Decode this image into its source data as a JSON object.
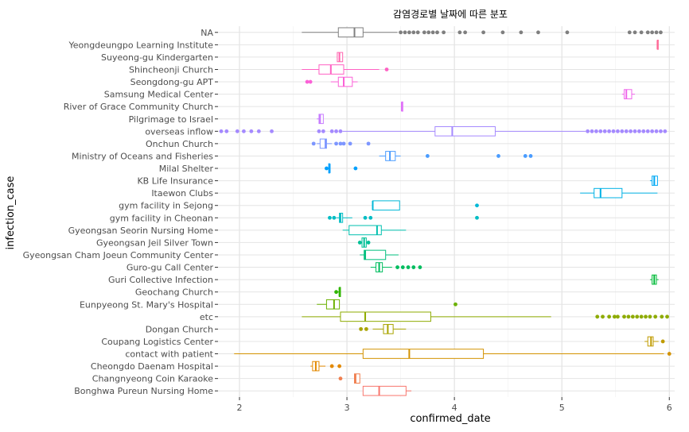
{
  "chart_data": {
    "type": "boxplot",
    "title": "감염경로별 날짜에 따른 분포",
    "xlabel": "confirmed_date",
    "ylabel": "infection_case",
    "xlim": [
      1.8,
      6.05
    ],
    "x_ticks": [
      "2",
      "3",
      "4",
      "5",
      "6"
    ],
    "x_tick_values": [
      2,
      3,
      4,
      5,
      6
    ],
    "grid": true,
    "legend": "none",
    "categories": [
      "Bonghwa Pureun Nursing Home",
      "Changnyeong Coin Karaoke",
      "Cheongdo Daenam Hospital",
      "contact with patient",
      "Coupang Logistics Center",
      "Dongan Church",
      "etc",
      "Eunpyeong St. Mary's Hospital",
      "Geochang Church",
      "Guri Collective Infection",
      "Guro-gu Call Center",
      "Gyeongsan Cham Joeun Community Center",
      "Gyeongsan Jeil Silver Town",
      "Gyeongsan Seorin Nursing Home",
      "gym facility in Cheonan",
      "gym facility in Sejong",
      "Itaewon Clubs",
      "KB Life Insurance",
      "Milal Shelter",
      "Ministry of Oceans and Fisheries",
      "Onchun Church",
      "overseas inflow",
      "Pilgrimage to Israel",
      "River of Grace Community Church",
      "Samsung Medical Center",
      "Seongdong-gu APT",
      "Shincheonji Church",
      "Suyeong-gu Kindergarten",
      "Yeongdeungpo Learning Institute",
      "NA"
    ],
    "series": [
      {
        "category": "Bonghwa Pureun Nursing Home",
        "color": "#F8766D",
        "min": 3.15,
        "q1": 3.15,
        "median": 3.3,
        "q3": 3.55,
        "max": 3.6,
        "outliers": []
      },
      {
        "category": "Changnyeong Coin Karaoke",
        "color": "#F07F4F",
        "min": 3.07,
        "q1": 3.07,
        "median": 3.08,
        "q3": 3.12,
        "max": 3.12,
        "outliers": [
          2.94
        ]
      },
      {
        "category": "Cheongdo Daenam Hospital",
        "color": "#E38900",
        "min": 2.66,
        "q1": 2.68,
        "median": 2.71,
        "q3": 2.74,
        "max": 2.8,
        "outliers": [
          2.86,
          2.93
        ]
      },
      {
        "category": "contact with patient",
        "color": "#D39200",
        "min": 1.95,
        "q1": 3.15,
        "median": 3.58,
        "q3": 4.27,
        "max": 5.95,
        "outliers": [
          6.0
        ]
      },
      {
        "category": "Coupang Logistics Center",
        "color": "#C09B00",
        "min": 5.77,
        "q1": 5.8,
        "median": 5.83,
        "q3": 5.85,
        "max": 5.9,
        "outliers": [
          5.94
        ]
      },
      {
        "category": "Dongan Church",
        "color": "#A9A400",
        "min": 3.24,
        "q1": 3.34,
        "median": 3.38,
        "q3": 3.43,
        "max": 3.55,
        "outliers": [
          3.13,
          3.18
        ]
      },
      {
        "category": "etc",
        "color": "#8EAB00",
        "min": 2.58,
        "q1": 2.94,
        "median": 3.17,
        "q3": 3.78,
        "max": 4.9,
        "outliers": [
          5.33,
          5.38,
          5.44,
          5.49,
          5.52,
          5.58,
          5.62,
          5.66,
          5.7,
          5.74,
          5.78,
          5.82,
          5.87,
          5.93,
          5.98
        ]
      },
      {
        "category": "Eunpyeong St. Mary's Hospital",
        "color": "#6BB100",
        "min": 2.72,
        "q1": 2.81,
        "median": 2.88,
        "q3": 2.93,
        "max": 2.93,
        "outliers": [
          4.01
        ]
      },
      {
        "category": "Geochang Church",
        "color": "#2FB600",
        "min": 2.9,
        "q1": 2.93,
        "median": 2.93,
        "q3": 2.94,
        "max": 2.94,
        "outliers": [
          2.9
        ]
      },
      {
        "category": "Guri Collective Infection",
        "color": "#00BA38",
        "min": 5.82,
        "q1": 5.84,
        "median": 5.86,
        "q3": 5.88,
        "max": 5.9,
        "outliers": []
      },
      {
        "category": "Guro-gu Call Center",
        "color": "#00BD5F",
        "min": 3.22,
        "q1": 3.27,
        "median": 3.3,
        "q3": 3.33,
        "max": 3.42,
        "outliers": [
          3.47,
          3.52,
          3.57,
          3.62,
          3.68
        ]
      },
      {
        "category": "Gyeongsan Cham Joeun Community Center",
        "color": "#00BF7D",
        "min": 3.12,
        "q1": 3.16,
        "median": 3.17,
        "q3": 3.36,
        "max": 3.48,
        "outliers": []
      },
      {
        "category": "Gyeongsan Jeil Silver Town",
        "color": "#00C097",
        "min": 3.12,
        "q1": 3.14,
        "median": 3.16,
        "q3": 3.18,
        "max": 3.2,
        "outliers": [
          3.12,
          3.2
        ]
      },
      {
        "category": "Gyeongsan Seorin Nursing Home",
        "color": "#00C0AF",
        "min": 2.96,
        "q1": 3.02,
        "median": 3.28,
        "q3": 3.32,
        "max": 3.55,
        "outliers": []
      },
      {
        "category": "gym facility in Cheonan",
        "color": "#00BDC4",
        "min": 2.9,
        "q1": 2.93,
        "median": 2.94,
        "q3": 2.96,
        "max": 3.05,
        "outliers": [
          2.84,
          2.88,
          3.17,
          3.22,
          4.21
        ]
      },
      {
        "category": "gym facility in Sejong",
        "color": "#00B8D7",
        "min": 3.24,
        "q1": 3.24,
        "median": 3.24,
        "q3": 3.49,
        "max": 3.49,
        "outliers": [
          4.21
        ]
      },
      {
        "category": "Itaewon Clubs",
        "color": "#00B2E6",
        "min": 5.17,
        "q1": 5.3,
        "median": 5.36,
        "q3": 5.56,
        "max": 5.89,
        "outliers": []
      },
      {
        "category": "KB Life Insurance",
        "color": "#00A9F4",
        "min": 5.82,
        "q1": 5.84,
        "median": 5.86,
        "q3": 5.89,
        "max": 5.89,
        "outliers": []
      },
      {
        "category": "Milal Shelter",
        "color": "#00A0FD",
        "min": 2.81,
        "q1": 2.83,
        "median": 2.84,
        "q3": 2.84,
        "max": 2.84,
        "outliers": [
          2.81,
          3.08
        ]
      },
      {
        "category": "Ministry of Oceans and Fisheries",
        "color": "#4A9CFF",
        "min": 3.3,
        "q1": 3.36,
        "median": 3.4,
        "q3": 3.45,
        "max": 3.5,
        "outliers": [
          3.75,
          4.41,
          4.66,
          4.71
        ]
      },
      {
        "category": "Onchun Church",
        "color": "#7D96FF",
        "min": 2.72,
        "q1": 2.75,
        "median": 2.8,
        "q3": 2.81,
        "max": 2.86,
        "outliers": [
          2.69,
          2.9,
          2.94,
          2.97,
          3.03,
          3.2
        ]
      },
      {
        "category": "overseas inflow",
        "color": "#A58AFF",
        "min": 2.96,
        "q1": 3.82,
        "median": 3.98,
        "q3": 4.38,
        "max": 5.22,
        "outliers": [
          1.83,
          1.88,
          1.98,
          2.04,
          2.11,
          2.18,
          2.3,
          2.74,
          2.78,
          2.86,
          2.9,
          2.94,
          5.24,
          5.28,
          5.32,
          5.36,
          5.4,
          5.44,
          5.48,
          5.52,
          5.56,
          5.6,
          5.64,
          5.68,
          5.72,
          5.76,
          5.8,
          5.84,
          5.88,
          5.92,
          5.96
        ]
      },
      {
        "category": "Pilgrimage to Israel",
        "color": "#C77CFF",
        "min": 2.72,
        "q1": 2.74,
        "median": 2.75,
        "q3": 2.78,
        "max": 2.78,
        "outliers": []
      },
      {
        "category": "River of Grace Community Church",
        "color": "#DF70F8",
        "min": 3.51,
        "q1": 3.51,
        "median": 3.51,
        "q3": 3.52,
        "max": 3.52,
        "outliers": []
      },
      {
        "category": "Samsung Medical Center",
        "color": "#EF67EB",
        "min": 5.56,
        "q1": 5.58,
        "median": 5.6,
        "q3": 5.65,
        "max": 5.68,
        "outliers": []
      },
      {
        "category": "Seongdong-gu APT",
        "color": "#FB61D7",
        "min": 2.85,
        "q1": 2.92,
        "median": 2.97,
        "q3": 3.05,
        "max": 3.1,
        "outliers": [
          2.63,
          2.66
        ]
      },
      {
        "category": "Shincheonji Church",
        "color": "#FF61C3",
        "min": 2.58,
        "q1": 2.74,
        "median": 2.85,
        "q3": 2.97,
        "max": 3.3,
        "outliers": [
          3.37
        ]
      },
      {
        "category": "Suyeong-gu Kindergarten",
        "color": "#FF64AF",
        "min": 2.91,
        "q1": 2.91,
        "median": 2.93,
        "q3": 2.96,
        "max": 2.96,
        "outliers": []
      },
      {
        "category": "Yeongdeungpo Learning Institute",
        "color": "#FF6A98",
        "min": 5.89,
        "q1": 5.89,
        "median": 5.89,
        "q3": 5.89,
        "max": 5.89,
        "outliers": []
      },
      {
        "category": "NA",
        "color": "#7F7F7F",
        "min": 2.58,
        "q1": 2.92,
        "median": 3.07,
        "q3": 3.15,
        "max": 3.47,
        "outliers": [
          3.5,
          3.54,
          3.58,
          3.62,
          3.66,
          3.72,
          3.76,
          3.8,
          3.84,
          3.9,
          4.05,
          4.1,
          4.27,
          4.45,
          4.62,
          4.78,
          5.05,
          5.63,
          5.68,
          5.74,
          5.8,
          5.84,
          5.88,
          5.92
        ]
      }
    ]
  }
}
